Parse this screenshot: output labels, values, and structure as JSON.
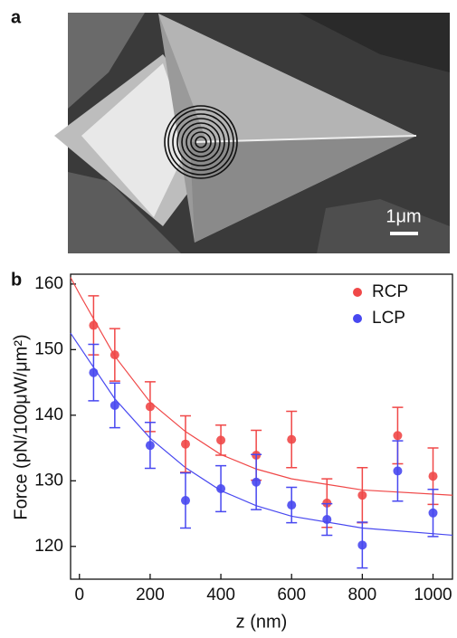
{
  "panel_a": {
    "label": "a",
    "scale_bar": "1μm"
  },
  "chart_data": {
    "type": "scatter",
    "panel_label": "b",
    "x_label": "z (nm)",
    "y_label": "Force (pN/100μW/μm²)",
    "xlim": [
      -25,
      1055
    ],
    "ylim": [
      115,
      161.5
    ],
    "xticks": [
      0,
      200,
      400,
      600,
      800,
      1000
    ],
    "yticks": [
      120,
      130,
      140,
      150,
      160
    ],
    "legend": "top-right",
    "series": [
      {
        "name": "RCP",
        "color": "#f04848",
        "x": [
          40,
          100,
          200,
          300,
          400,
          500,
          600,
          700,
          800,
          900,
          1000
        ],
        "values": [
          153.7,
          149.2,
          141.3,
          135.6,
          136.2,
          133.9,
          136.3,
          126.6,
          127.8,
          136.9,
          130.7
        ],
        "errors": [
          4.5,
          4,
          3.8,
          4.3,
          2.3,
          3.8,
          4.3,
          3.7,
          4.2,
          4.3,
          4.3
        ]
      },
      {
        "name": "LCP",
        "color": "#4848f0",
        "x": [
          40,
          100,
          200,
          300,
          400,
          500,
          600,
          700,
          800,
          900,
          1000
        ],
        "values": [
          146.5,
          141.5,
          135.4,
          127.0,
          128.8,
          129.8,
          126.3,
          124.1,
          120.2,
          131.5,
          125.1
        ],
        "errors": [
          4.3,
          3.4,
          3.5,
          4.2,
          3.5,
          4.2,
          2.7,
          2.4,
          3.5,
          4.6,
          3.6
        ]
      }
    ],
    "fits": [
      {
        "color": "#f04848",
        "x": [
          -25,
          0,
          100,
          200,
          300,
          400,
          500,
          600,
          800,
          1055
        ],
        "values": [
          161,
          158.5,
          149,
          142,
          137.5,
          134,
          131.8,
          130.3,
          128.6,
          127.8
        ]
      },
      {
        "color": "#4848f0",
        "x": [
          -25,
          0,
          100,
          200,
          300,
          400,
          500,
          600,
          800,
          1055
        ],
        "values": [
          152.5,
          150.5,
          142.5,
          136.5,
          132,
          128.5,
          126.2,
          124.6,
          122.8,
          121.7
        ]
      }
    ]
  }
}
